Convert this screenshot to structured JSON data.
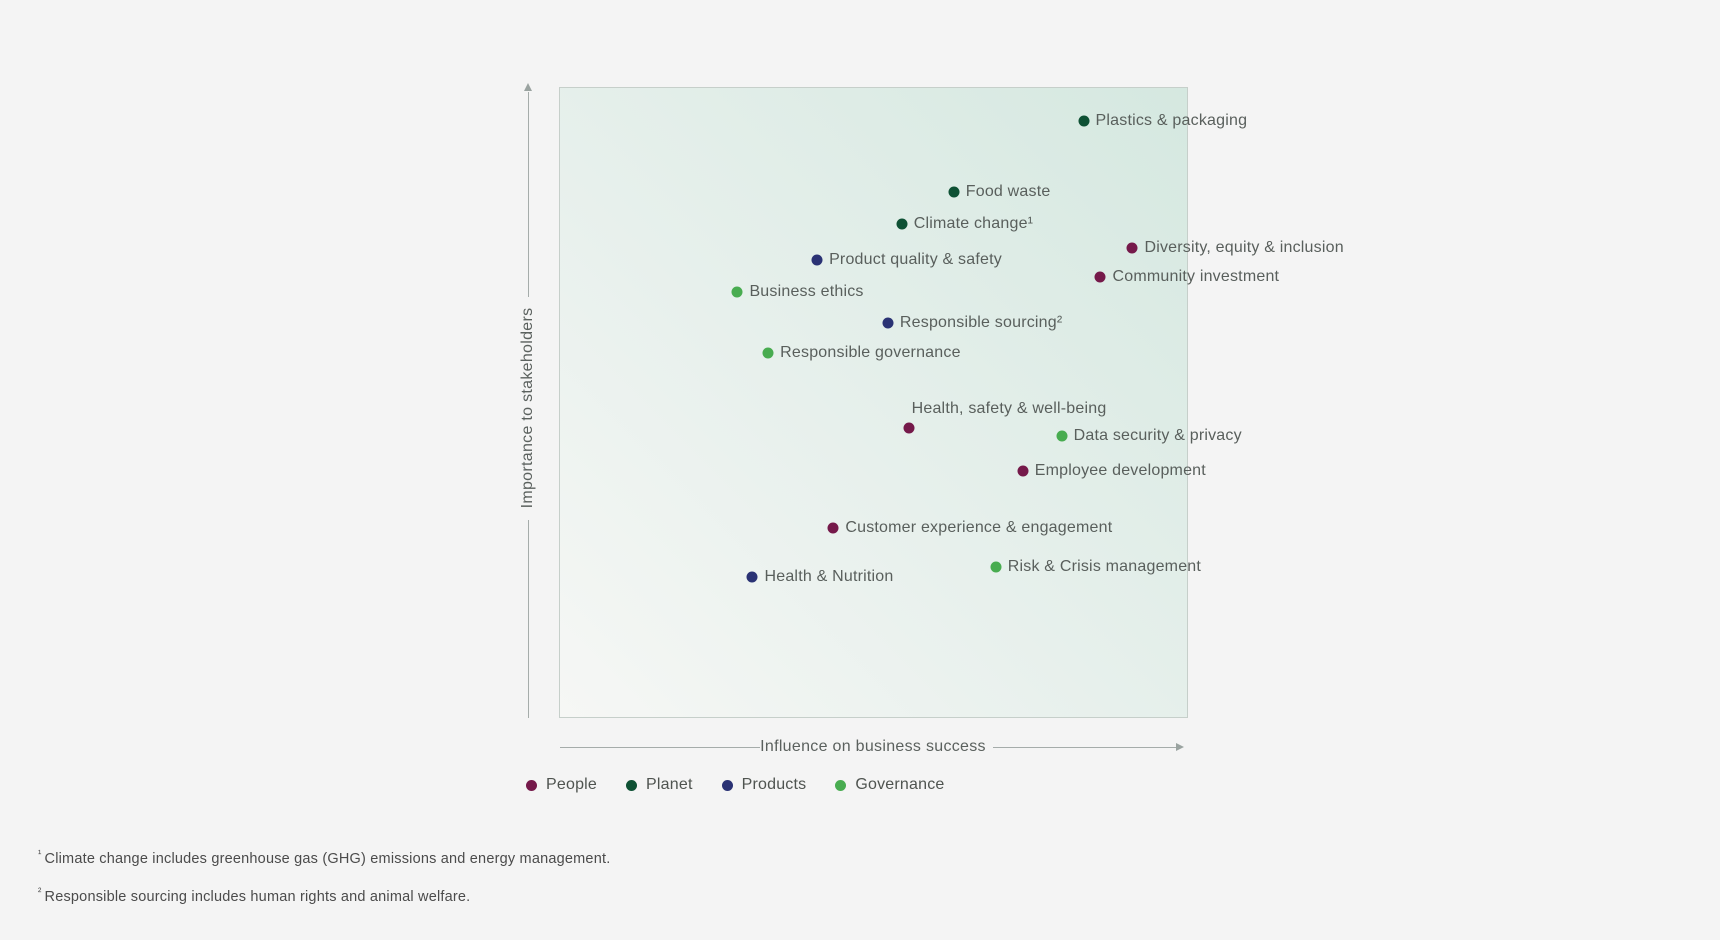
{
  "chart_data": {
    "type": "scatter",
    "title": "",
    "xlabel": "Influence on business success",
    "ylabel": "Importance to stakeholders",
    "grid": false,
    "axis_ticks": "none (qualitative materiality matrix)",
    "legend_position": "bottom",
    "plot_background": {
      "gradient_from": "#f6f7f5",
      "gradient_to": "#d5e8e0",
      "direction": "to top right"
    },
    "legend": [
      {
        "category": "people",
        "label": "People",
        "color": "#75194a"
      },
      {
        "category": "planet",
        "label": "Planet",
        "color": "#0e5134"
      },
      {
        "category": "products",
        "label": "Products",
        "color": "#2a3274"
      },
      {
        "category": "governance",
        "label": "Governance",
        "color": "#48ac50"
      }
    ],
    "points": [
      {
        "label": "Plastics & packaging",
        "category": "planet",
        "x": 83.5,
        "y": 94.8,
        "label_pos": "right"
      },
      {
        "label": "Food waste",
        "category": "planet",
        "x": 62.8,
        "y": 83.5,
        "label_pos": "right"
      },
      {
        "label": "Climate change¹",
        "category": "planet",
        "x": 54.5,
        "y": 78.3,
        "label_pos": "right"
      },
      {
        "label": "Diversity, equity & inclusion",
        "category": "people",
        "x": 91.3,
        "y": 74.6,
        "label_pos": "right"
      },
      {
        "label": "Product quality & safety",
        "category": "products",
        "x": 41.0,
        "y": 72.7,
        "label_pos": "right"
      },
      {
        "label": "Community investment",
        "category": "people",
        "x": 86.2,
        "y": 69.9,
        "label_pos": "right"
      },
      {
        "label": "Business ethics",
        "category": "governance",
        "x": 28.3,
        "y": 67.5,
        "label_pos": "right"
      },
      {
        "label": "Responsible sourcing²",
        "category": "products",
        "x": 52.3,
        "y": 62.6,
        "label_pos": "right"
      },
      {
        "label": "Responsible governance",
        "category": "governance",
        "x": 33.2,
        "y": 57.8,
        "label_pos": "right"
      },
      {
        "label": "Health, safety & well-being",
        "category": "people",
        "x": 55.6,
        "y": 46.0,
        "label_pos": "above"
      },
      {
        "label": "Data security & privacy",
        "category": "governance",
        "x": 80.0,
        "y": 44.7,
        "label_pos": "right"
      },
      {
        "label": "Employee development",
        "category": "people",
        "x": 73.8,
        "y": 39.1,
        "label_pos": "right"
      },
      {
        "label": "Customer experience & engagement",
        "category": "people",
        "x": 43.6,
        "y": 30.0,
        "label_pos": "right"
      },
      {
        "label": "Risk & Crisis management",
        "category": "governance",
        "x": 69.5,
        "y": 23.9,
        "label_pos": "right"
      },
      {
        "label": "Health & Nutrition",
        "category": "products",
        "x": 30.7,
        "y": 22.3,
        "label_pos": "right"
      }
    ]
  },
  "footnotes": [
    {
      "sup": "¹",
      "text": "Climate change includes greenhouse gas (GHG) emissions and energy management."
    },
    {
      "sup": "²",
      "text": "Responsible sourcing includes human rights and animal welfare."
    }
  ]
}
